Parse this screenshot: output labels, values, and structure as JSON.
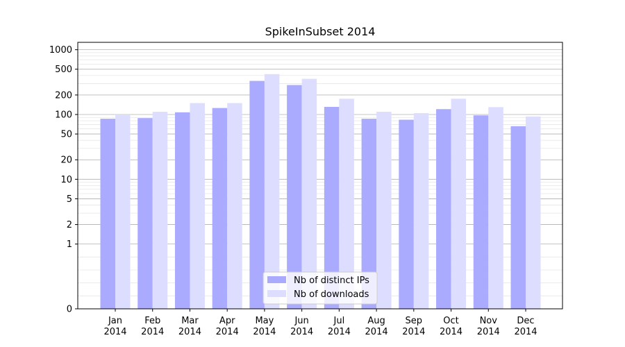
{
  "chart_data": {
    "type": "bar",
    "title": "SpikeInSubset 2014",
    "xlabel": "",
    "ylabel": "",
    "yscale": "symlog",
    "ylim": [
      0,
      1300
    ],
    "yticks": [
      0,
      1,
      2,
      5,
      10,
      20,
      50,
      100,
      200,
      500,
      1000
    ],
    "categories": [
      "Jan\n2014",
      "Feb\n2014",
      "Mar\n2014",
      "Apr\n2014",
      "May\n2014",
      "Jun\n2014",
      "Jul\n2014",
      "Aug\n2014",
      "Sep\n2014",
      "Oct\n2014",
      "Nov\n2014",
      "Dec\n2014"
    ],
    "series": [
      {
        "name": "Nb of distinct IPs",
        "color": "#aaaaff",
        "values": [
          86,
          88,
          108,
          126,
          330,
          285,
          131,
          86,
          83,
          121,
          97,
          66
        ]
      },
      {
        "name": "Nb of downloads",
        "color": "#ddddff",
        "values": [
          100,
          110,
          150,
          150,
          420,
          355,
          175,
          110,
          105,
          175,
          130,
          93
        ]
      }
    ],
    "grid": true,
    "legend_position": "lower-center"
  }
}
